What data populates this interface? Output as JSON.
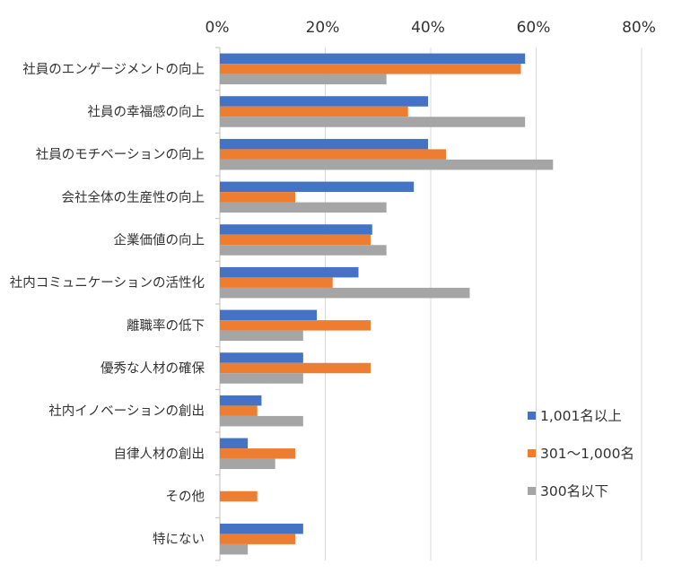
{
  "chart_data": {
    "type": "bar",
    "orientation": "horizontal",
    "title": "",
    "xlabel": "",
    "ylabel": "",
    "xlim": [
      0,
      80
    ],
    "x_ticks": [
      "0%",
      "20%",
      "40%",
      "60%",
      "80%"
    ],
    "x_axis_position": "top",
    "grid": true,
    "legend_position": "right",
    "categories": [
      "社員のエンゲージメントの向上",
      "社員の幸福感の向上",
      "社員のモチベーションの向上",
      "会社全体の生産性の向上",
      "企業価値の向上",
      "社内コミュニケーションの活性化",
      "離職率の低下",
      "優秀な人材の確保",
      "社内イノベーションの創出",
      "自律人材の創出",
      "その他",
      "特にない"
    ],
    "series": [
      {
        "name": "1,001名以上",
        "color": "#4472C4",
        "values": [
          57.9,
          39.5,
          39.5,
          36.8,
          28.9,
          26.3,
          18.4,
          15.8,
          7.9,
          5.3,
          0,
          15.8
        ]
      },
      {
        "name": "301～1,000名",
        "color": "#ED7D31",
        "values": [
          57.1,
          35.7,
          42.9,
          14.3,
          28.6,
          21.4,
          28.6,
          28.6,
          7.1,
          14.3,
          7.1,
          14.3
        ]
      },
      {
        "name": "300名以下",
        "color": "#A5A5A5",
        "values": [
          31.6,
          57.9,
          63.2,
          31.6,
          31.6,
          47.4,
          15.8,
          15.8,
          15.8,
          10.5,
          0,
          5.3
        ]
      }
    ]
  }
}
